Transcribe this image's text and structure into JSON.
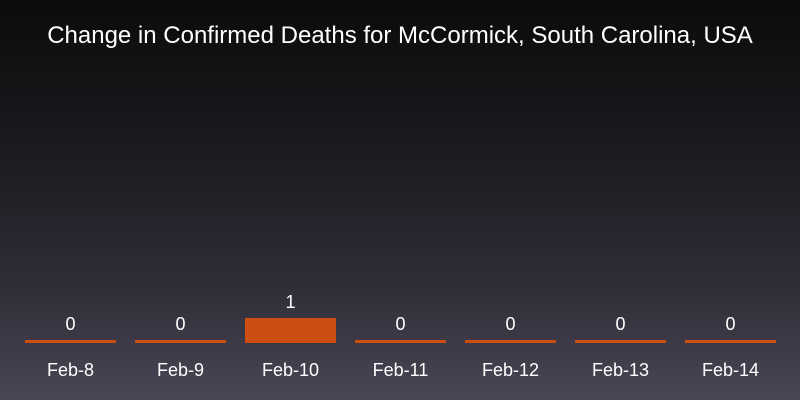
{
  "colors": {
    "bar": "#cc4e10"
  },
  "chart_data": {
    "type": "bar",
    "title": "Change in Confirmed Deaths for McCormick, South Carolina, USA",
    "categories": [
      "Feb-8",
      "Feb-9",
      "Feb-10",
      "Feb-11",
      "Feb-12",
      "Feb-13",
      "Feb-14"
    ],
    "values": [
      0,
      0,
      1,
      0,
      0,
      0,
      0
    ],
    "data_labels": [
      "0",
      "0",
      "1",
      "0",
      "0",
      "0",
      "0"
    ],
    "xlabel": "",
    "ylabel": "",
    "ylim": [
      0,
      1
    ],
    "grid": false,
    "legend": "none"
  }
}
